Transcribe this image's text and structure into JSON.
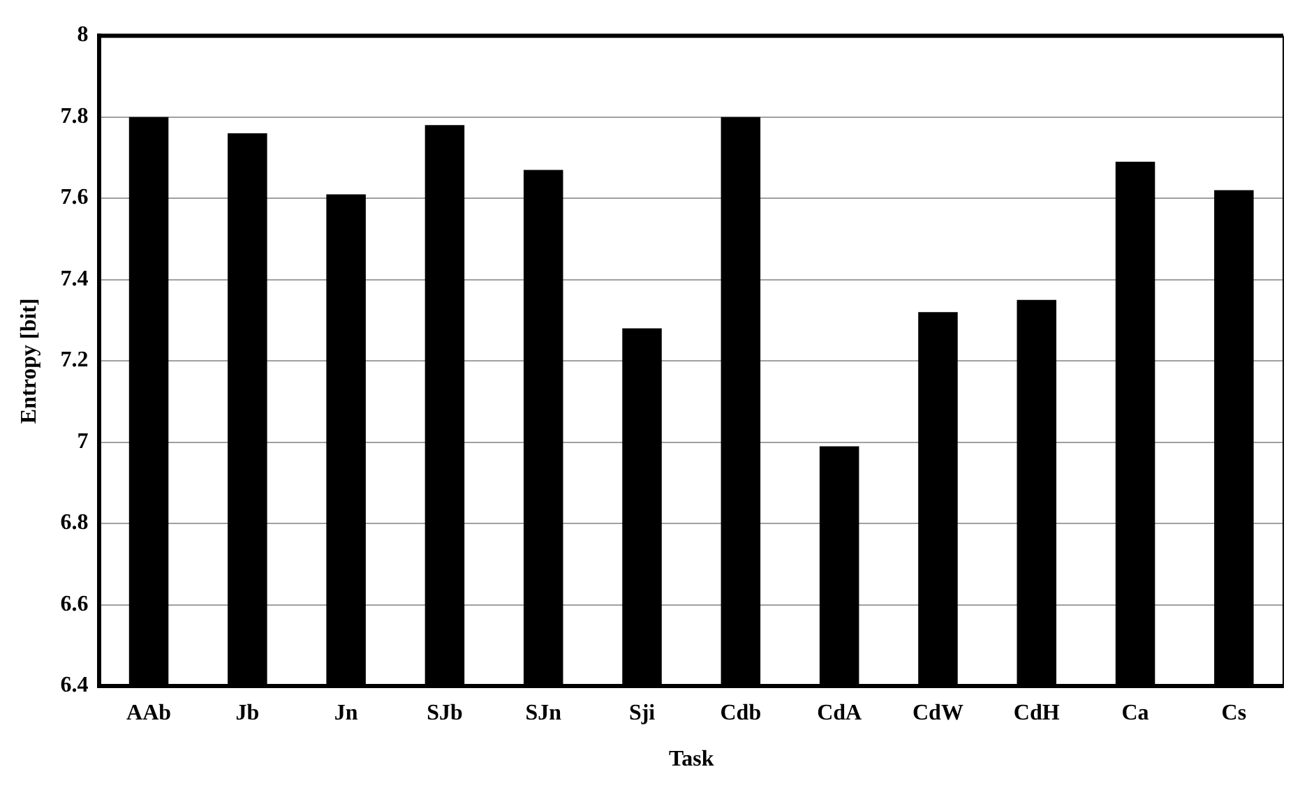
{
  "chart_data": {
    "type": "bar",
    "xlabel": "Task",
    "ylabel": "Entropy [bit]",
    "categories": [
      "AAb",
      "Jb",
      "Jn",
      "SJb",
      "SJn",
      "Sji",
      "Cdb",
      "CdA",
      "CdW",
      "CdH",
      "Ca",
      "Cs"
    ],
    "values": [
      7.8,
      7.76,
      7.61,
      7.78,
      7.67,
      7.28,
      7.8,
      6.99,
      7.32,
      7.35,
      7.69,
      7.62
    ],
    "color": "#000000",
    "ylim": [
      6.4,
      8
    ],
    "yticks": [
      6.4,
      6.6,
      6.8,
      7,
      7.2,
      7.4,
      7.6,
      7.8,
      8
    ],
    "grid": "y",
    "legend": false
  }
}
